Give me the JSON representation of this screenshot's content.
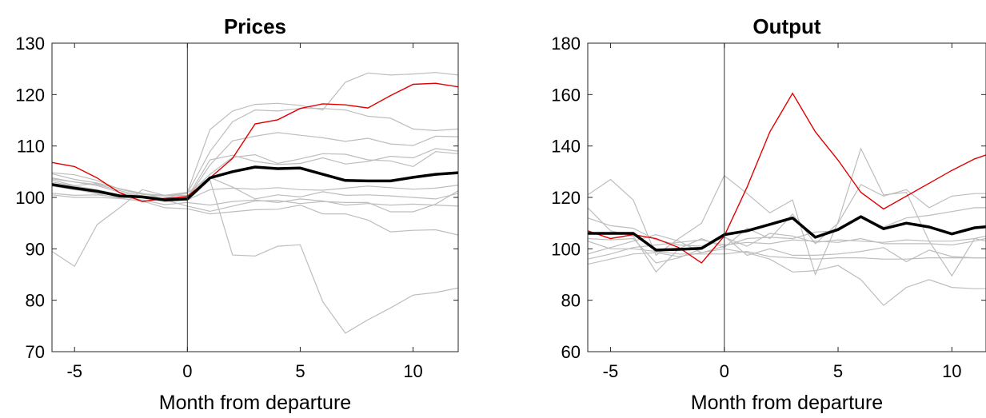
{
  "chart_data": [
    {
      "type": "line",
      "title": "Prices",
      "xlabel": "Month from departure",
      "ylabel": "",
      "xlim": [
        -6,
        12
      ],
      "ylim": [
        70,
        130
      ],
      "xticks": [
        -5,
        0,
        5,
        10
      ],
      "yticks": [
        70,
        80,
        90,
        100,
        110,
        120,
        130
      ],
      "x": [
        -6,
        -5,
        -4,
        -3,
        -2,
        -1,
        0,
        1,
        2,
        3,
        4,
        5,
        6,
        7,
        8,
        9,
        10,
        11,
        12
      ],
      "vline_x": 0,
      "colors": {
        "background_series": "#bdbdbd",
        "highlight": "#e00000",
        "mean": "#000000"
      },
      "mean": [
        102.5,
        101.8,
        101.2,
        100.3,
        100.1,
        99.5,
        99.7,
        103.8,
        105.0,
        105.9,
        105.6,
        105.7,
        104.5,
        103.3,
        103.2,
        103.2,
        103.9,
        104.5,
        104.8
      ],
      "highlight": [
        106.8,
        106.0,
        103.8,
        100.9,
        99.2,
        99.8,
        100.2,
        103.8,
        107.6,
        114.3,
        115.1,
        117.3,
        118.2,
        118.0,
        117.4,
        119.8,
        122.0,
        122.2,
        121.5
      ],
      "background": [
        [
          89.5,
          86.6,
          94.7,
          98.0,
          101.5,
          100.4,
          101.0,
          113.2,
          116.8,
          118.1,
          118.3,
          117.9,
          117.0,
          122.4,
          124.2,
          123.8,
          124.0,
          124.3,
          123.8
        ],
        [
          104.8,
          104.4,
          103.3,
          101.6,
          100.6,
          100.3,
          100.8,
          108.9,
          114.7,
          117.0,
          116.8,
          117.3,
          117.3,
          117.0,
          115.8,
          115.4,
          113.3,
          113.0,
          113.3
        ],
        [
          103.8,
          103.0,
          102.3,
          101.0,
          100.1,
          99.5,
          99.8,
          106.3,
          111.0,
          111.9,
          112.6,
          112.1,
          111.6,
          110.9,
          111.5,
          110.4,
          110.1,
          111.9,
          111.8
        ],
        [
          103.4,
          102.3,
          102.7,
          101.7,
          100.7,
          100.4,
          100.4,
          104.5,
          107.8,
          108.3,
          106.6,
          107.5,
          108.5,
          108.4,
          107.3,
          107.1,
          106.0,
          108.9,
          108.5
        ],
        [
          100.8,
          100.4,
          100.5,
          100.0,
          100.2,
          99.5,
          100.0,
          107.3,
          108.2,
          107.0,
          106.4,
          106.6,
          107.7,
          106.5,
          107.0,
          108.0,
          107.7,
          109.5,
          109.0
        ],
        [
          103.6,
          103.0,
          102.5,
          101.3,
          100.3,
          99.9,
          100.9,
          103.9,
          102.0,
          99.7,
          100.5,
          100.1,
          101.1,
          100.4,
          100.5,
          100.3,
          100.0,
          99.7,
          100.8
        ],
        [
          102.2,
          101.5,
          101.0,
          100.2,
          99.5,
          98.6,
          99.0,
          98.5,
          99.2,
          99.5,
          99.0,
          99.7,
          99.3,
          98.5,
          98.8,
          98.5,
          98.7,
          98.5,
          98.3
        ],
        [
          100.5,
          100.0,
          100.0,
          99.8,
          100.3,
          99.5,
          98.3,
          97.3,
          98.3,
          99.3,
          99.4,
          98.8,
          99.2,
          99.0,
          99.0,
          97.2,
          97.2,
          98.7,
          101.3
        ],
        [
          102.7,
          101.6,
          100.7,
          99.8,
          99.3,
          98.0,
          97.8,
          96.8,
          97.2,
          97.6,
          97.7,
          98.5,
          96.8,
          96.8,
          95.6,
          93.3,
          93.6,
          93.7,
          92.7
        ],
        [
          104.6,
          103.5,
          102.8,
          101.7,
          100.8,
          99.8,
          99.4,
          103.4,
          88.8,
          88.6,
          90.5,
          90.8,
          79.7,
          73.6,
          76.2,
          78.5,
          81.0,
          81.5,
          82.4
        ],
        [
          103.0,
          102.2,
          101.5,
          100.5,
          99.9,
          99.2,
          99.5,
          101.5,
          101.8,
          101.6,
          101.9,
          101.5,
          101.4,
          101.8,
          102.2,
          101.9,
          101.6,
          101.8,
          102.4
        ]
      ]
    },
    {
      "type": "line",
      "title": "Output",
      "xlabel": "Month from departure",
      "ylabel": "",
      "xlim": [
        -6,
        11.5
      ],
      "ylim": [
        60,
        180
      ],
      "xticks": [
        -5,
        0,
        5,
        10
      ],
      "yticks": [
        60,
        80,
        100,
        120,
        140,
        160,
        180
      ],
      "x": [
        -6,
        -5,
        -4,
        -3,
        -2,
        -1,
        0,
        1,
        2,
        3,
        4,
        5,
        6,
        7,
        8,
        9,
        10,
        11,
        11.5
      ],
      "vline_x": 0,
      "colors": {
        "background_series": "#bdbdbd",
        "highlight": "#e00000",
        "mean": "#000000"
      },
      "mean": [
        106.0,
        106.0,
        106.0,
        99.5,
        99.8,
        100.2,
        105.5,
        107.0,
        109.5,
        112.0,
        104.5,
        107.5,
        112.5,
        107.8,
        110.0,
        108.5,
        105.8,
        108.2,
        108.6
      ],
      "highlight": [
        107.0,
        104.0,
        105.5,
        104.0,
        100.5,
        94.5,
        105.0,
        124.0,
        145.5,
        160.5,
        145.5,
        134.5,
        122.0,
        115.5,
        120.5,
        125.5,
        130.5,
        135.0,
        136.5
      ],
      "background": [
        [
          121.0,
          127.0,
          119.0,
          97.5,
          104.0,
          110.0,
          128.5,
          121.5,
          114.0,
          119.0,
          90.0,
          110.5,
          139.0,
          121.0,
          122.0,
          103.0,
          89.5,
          104.0,
          103.0
        ],
        [
          116.0,
          107.0,
          105.0,
          91.0,
          100.0,
          104.0,
          100.5,
          108.0,
          104.0,
          113.5,
          102.0,
          110.0,
          125.0,
          120.5,
          123.0,
          116.0,
          120.5,
          121.5,
          121.5
        ],
        [
          98.0,
          100.5,
          103.0,
          105.5,
          103.0,
          98.5,
          101.0,
          104.0,
          104.5,
          104.0,
          106.5,
          107.0,
          112.5,
          108.5,
          112.0,
          113.0,
          114.5,
          116.0,
          116.0
        ],
        [
          96.0,
          98.0,
          100.5,
          101.5,
          102.5,
          103.5,
          101.5,
          102.5,
          102.0,
          103.5,
          103.0,
          102.5,
          104.0,
          102.0,
          102.0,
          102.0,
          101.5,
          103.0,
          104.0
        ],
        [
          103.0,
          100.0,
          100.0,
          99.0,
          98.0,
          98.0,
          98.0,
          99.0,
          97.0,
          96.5,
          96.0,
          96.5,
          96.5,
          96.0,
          96.0,
          96.5,
          96.5,
          96.5,
          96.5
        ],
        [
          94.0,
          96.0,
          98.0,
          98.5,
          97.0,
          98.5,
          100.0,
          98.5,
          96.0,
          91.0,
          91.5,
          93.5,
          88.0,
          78.0,
          85.0,
          88.0,
          85.0,
          84.5,
          84.5
        ],
        [
          104.0,
          103.5,
          104.0,
          94.5,
          96.5,
          100.0,
          105.0,
          97.5,
          100.0,
          97.5,
          97.5,
          98.0,
          99.0,
          100.5,
          95.0,
          99.5,
          97.0,
          96.5,
          96.5
        ],
        [
          112.0,
          109.0,
          108.0,
          103.5,
          101.5,
          101.0,
          104.5,
          101.0,
          106.0,
          105.0,
          102.5,
          103.5,
          103.0,
          102.5,
          103.5,
          103.0,
          103.0,
          104.0,
          105.0
        ]
      ]
    }
  ]
}
